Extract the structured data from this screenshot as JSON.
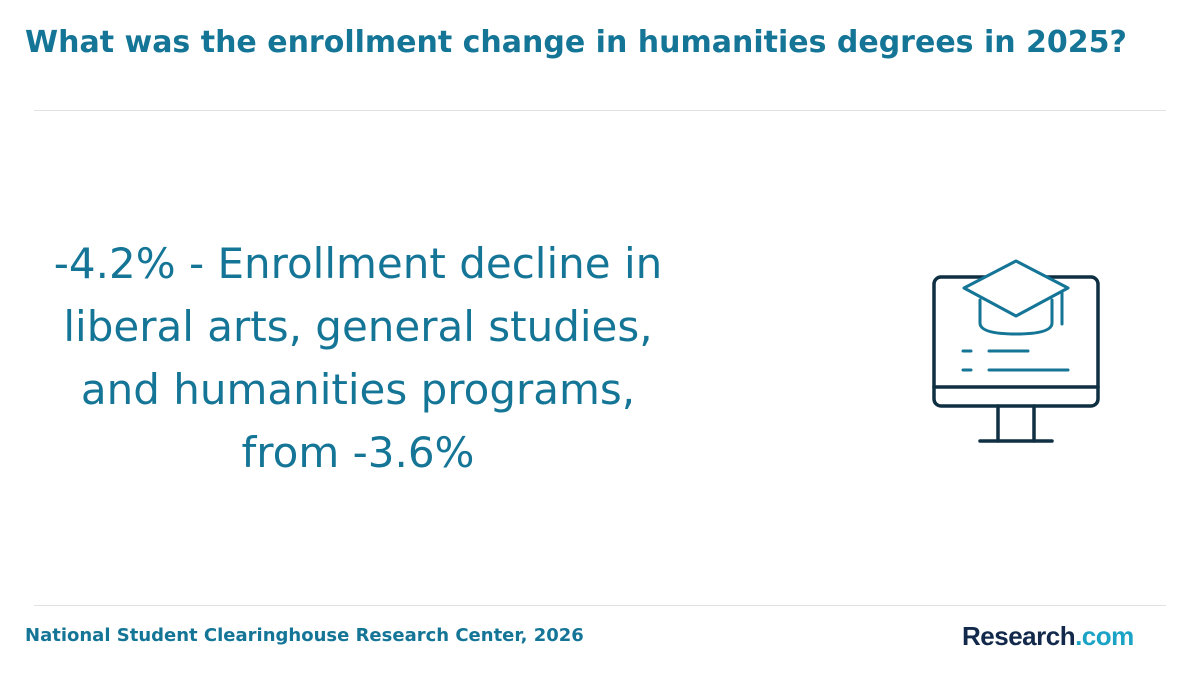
{
  "header": {
    "title": "What was the enrollment change in humanities degrees in 2025?"
  },
  "main": {
    "stat_text": "-4.2% - Enrollment decline in liberal arts, general studies, and humanities programs, from -3.6%",
    "illustration_icon": "computer-monitor-graduation-cap-icon"
  },
  "footer": {
    "source": "National Student Clearinghouse Research Center, 2026",
    "logo_brand": "Research",
    "logo_tld": ".com"
  },
  "colors": {
    "accent": "#147596",
    "icon_dark": "#0f2f43",
    "logo_dark": "#13294b",
    "logo_light": "#1ba3c6",
    "divider": "#e2e2e2"
  }
}
